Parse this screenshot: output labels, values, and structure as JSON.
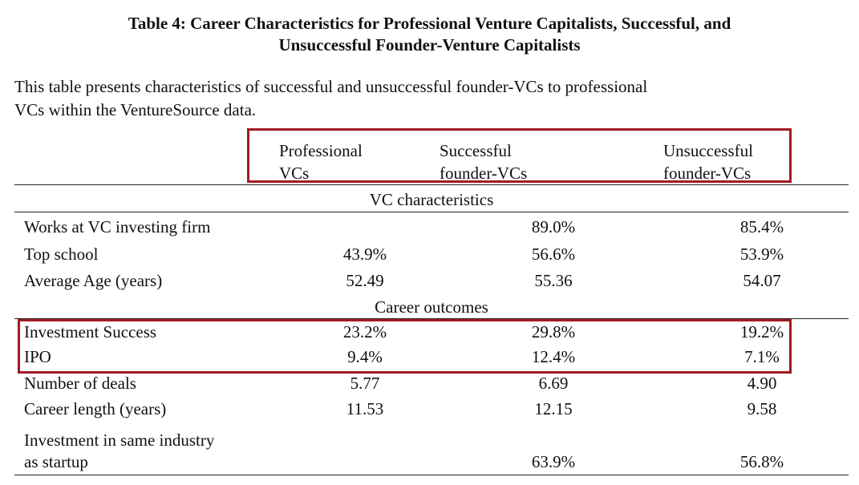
{
  "title_line1": "Table 4: Career Characteristics for Professional Venture Capitalists, Successful, and",
  "title_line2": "Unsuccessful Founder-Venture Capitalists",
  "caption_line1": "This table presents characteristics of successful and unsuccessful founder-VCs to professional",
  "caption_line2": "VCs within the VentureSource data.",
  "headers": [
    {
      "line1": "Professional",
      "line2": "VCs"
    },
    {
      "line1": "Successful",
      "line2": "founder-VCs"
    },
    {
      "line1": "Unsuccessful",
      "line2": "founder-VCs"
    }
  ],
  "section1": "VC characteristics",
  "section2": "Career outcomes",
  "rows": [
    {
      "label": "Works at VC investing firm",
      "v1": "",
      "v2": "89.0%",
      "v3": "85.4%"
    },
    {
      "label": "Top school",
      "v1": "43.9%",
      "v2": "56.6%",
      "v3": "53.9%"
    },
    {
      "label": "Average Age (years)",
      "v1": "52.49",
      "v2": "55.36",
      "v3": "54.07"
    },
    {
      "label": "Investment Success",
      "v1": "23.2%",
      "v2": "29.8%",
      "v3": "19.2%"
    },
    {
      "label": "IPO",
      "v1": "9.4%",
      "v2": "12.4%",
      "v3": "7.1%"
    },
    {
      "label": "Number of deals",
      "v1": "5.77",
      "v2": "6.69",
      "v3": "4.90"
    },
    {
      "label": "Career length (years)",
      "v1": "11.53",
      "v2": "12.15",
      "v3": "9.58"
    },
    {
      "label_line1": "Investment in same industry",
      "label_line2": "as startup",
      "v1": "",
      "v2": "63.9%",
      "v3": "56.8%"
    }
  ],
  "colors": {
    "highlight": "#a11b22"
  }
}
